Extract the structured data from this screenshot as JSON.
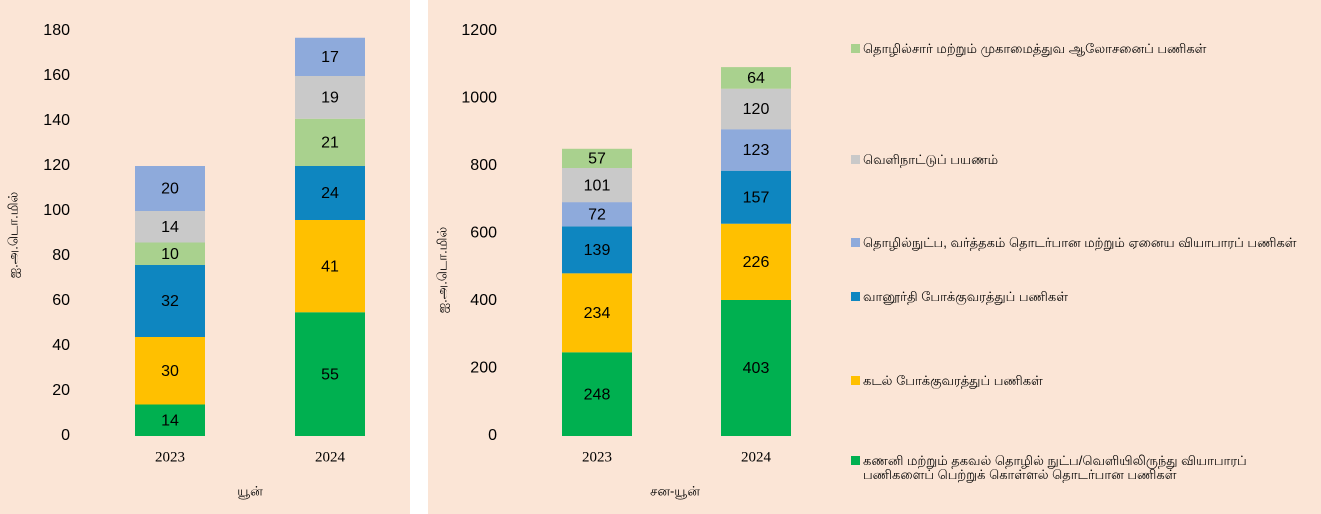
{
  "chart_data": [
    {
      "type": "stacked_bar",
      "ylabel": "ஐ.அ.டொ.மில்",
      "xlabel": "யூன்",
      "categories": [
        "2023",
        "2024"
      ],
      "ylim": [
        0,
        180
      ],
      "yticks": [
        0,
        20,
        40,
        60,
        80,
        100,
        120,
        140,
        160,
        180
      ],
      "series": [
        {
          "color": "#00b050",
          "values": [
            14,
            55
          ]
        },
        {
          "color": "#ffc000",
          "values": [
            30,
            41
          ]
        },
        {
          "color": "#0e86c0",
          "values": [
            32,
            24
          ]
        },
        {
          "color": "#a9d18e",
          "values": [
            10,
            21
          ]
        },
        {
          "color": "#c9c9c9",
          "values": [
            14,
            19
          ]
        },
        {
          "color": "#8eaadb",
          "values": [
            20,
            17
          ]
        }
      ]
    },
    {
      "type": "stacked_bar",
      "ylabel": "ஐ.அ.டொ.மில்",
      "xlabel": "சன-யூன்",
      "categories": [
        "2023",
        "2024"
      ],
      "ylim": [
        0,
        1200
      ],
      "yticks": [
        0,
        200,
        400,
        600,
        800,
        1000,
        1200
      ],
      "series": [
        {
          "name": "கணனி மற்றும் தகவல் தொழில் நுட்ப/வெளியிலிருந்து வியாபாரப் பணிகளைப் பெற்றுக் கொள்ளல் தொடர்பான பணிகள்",
          "color": "#00b050",
          "values": [
            248,
            403
          ]
        },
        {
          "name": "கடல் போக்குவரத்துப் பணிகள்",
          "color": "#ffc000",
          "values": [
            234,
            226
          ]
        },
        {
          "name": "வானூர்தி போக்குவரத்துப் பணிகள்",
          "color": "#0e86c0",
          "values": [
            139,
            157
          ]
        },
        {
          "name": "தொழில்நுட்ப, வர்த்தகம் தொடர்பான மற்றும் ஏனைய வியாபாரப் பணிகள்",
          "color": "#8eaadb",
          "values": [
            72,
            123
          ]
        },
        {
          "name": "வெளிநாட்டுப் பயணம்",
          "color": "#c9c9c9",
          "values": [
            101,
            120
          ]
        },
        {
          "name": "தொழில்சார் மற்றும் முகாமைத்துவ ஆலோசனைப் பணிகள்",
          "color": "#a9d18e",
          "values": [
            57,
            64
          ]
        }
      ]
    }
  ]
}
